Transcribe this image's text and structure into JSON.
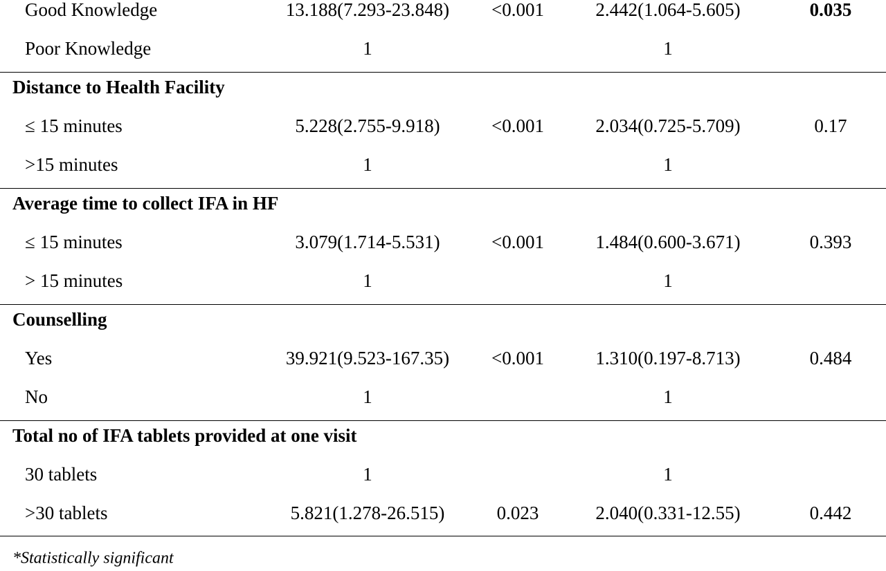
{
  "table": {
    "rows": [
      {
        "label": "Good Knowledge",
        "cor": "13.188(7.293-23.848)",
        "p1": "<0.001",
        "aor": "2.442(1.064-5.605)",
        "p2": "0.035",
        "p2_bold": true
      },
      {
        "label": "Poor Knowledge",
        "cor": "1",
        "aor": "1"
      },
      {
        "heading": "Distance to Health Facility"
      },
      {
        "label": "≤ 15 minutes",
        "cor": "5.228(2.755-9.918)",
        "p1": "<0.001",
        "aor": "2.034(0.725-5.709)",
        "p2": "0.17"
      },
      {
        "label": ">15 minutes",
        "cor": "1",
        "aor": "1"
      },
      {
        "heading": "Average time to collect IFA in HF"
      },
      {
        "label": "≤ 15 minutes",
        "cor": "3.079(1.714-5.531)",
        "p1": "<0.001",
        "aor": "1.484(0.600-3.671)",
        "p2": "0.393"
      },
      {
        "label": "> 15 minutes",
        "cor": "1",
        "aor": "1"
      },
      {
        "heading": "Counselling"
      },
      {
        "label": "Yes",
        "cor": "39.921(9.523-167.35)",
        "p1": "<0.001",
        "aor": "1.310(0.197-8.713)",
        "p2": "0.484"
      },
      {
        "label": "No",
        "cor": "1",
        "aor": "1"
      },
      {
        "heading": "Total no of IFA tablets provided at one visit"
      },
      {
        "label": "30 tablets",
        "cor": "1",
        "aor": "1"
      },
      {
        "label": ">30 tablets",
        "cor": "5.821(1.278-26.515)",
        "p1": "0.023",
        "aor": "2.040(0.331-12.55)",
        "p2": "0.442"
      }
    ],
    "footnote": "*Statistically significant"
  }
}
